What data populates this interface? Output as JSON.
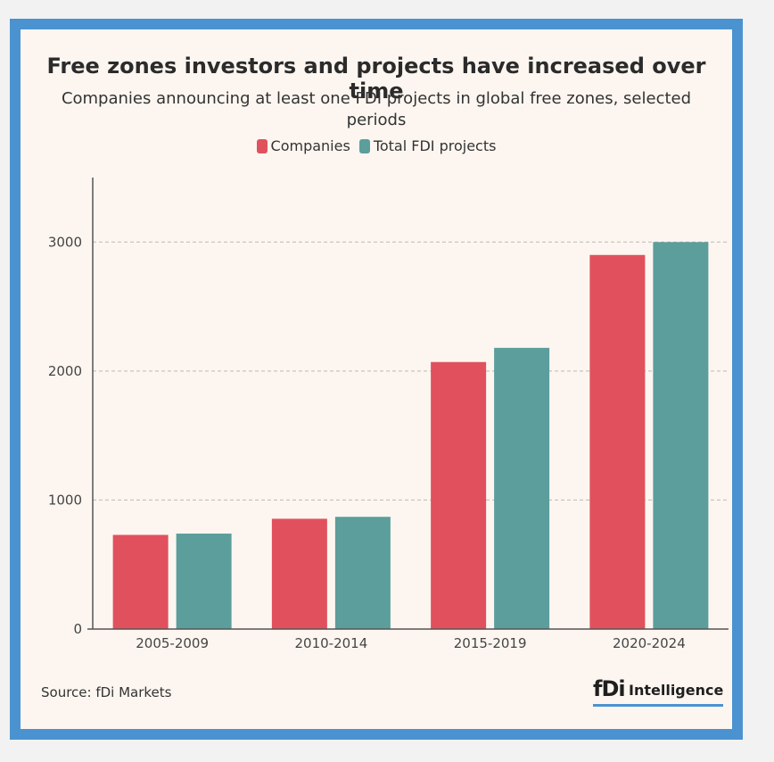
{
  "header": {
    "title": "Free zones investors and projects have increased over time",
    "subtitle": "Companies announcing at least one FDI projects in global free zones, selected periods"
  },
  "footer": {
    "source": "Source: fDi Markets",
    "logo_fdi": "fDi",
    "logo_word": "Intelligence"
  },
  "colors": {
    "companies": "#e0515d",
    "projects": "#5b9e9c",
    "frame": "#4a93d0",
    "background": "#fdf6f0"
  },
  "chart_data": {
    "type": "bar",
    "title": "Free zones investors and projects have increased over time",
    "subtitle": "Companies announcing at least one FDI projects in global free zones, selected periods",
    "categories": [
      "2005-2009",
      "2010-2014",
      "2015-2019",
      "2020-2024"
    ],
    "series": [
      {
        "name": "Companies",
        "color": "#e0515d",
        "values": [
          730,
          855,
          2070,
          2900
        ]
      },
      {
        "name": "Total FDI projects",
        "color": "#5b9e9c",
        "values": [
          740,
          870,
          2180,
          3000
        ]
      }
    ],
    "yticks": [
      0,
      1000,
      2000,
      3000
    ],
    "ylim": [
      0,
      3500
    ],
    "grid": true,
    "legend_position": "top-center",
    "xlabel": "",
    "ylabel": ""
  }
}
